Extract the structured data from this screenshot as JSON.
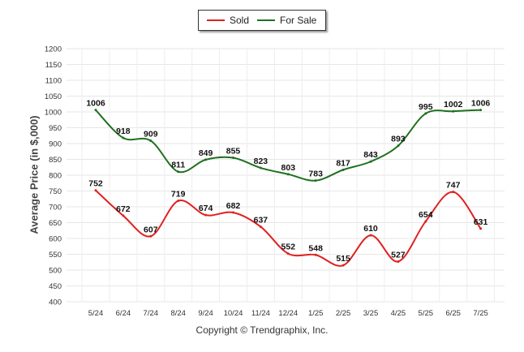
{
  "chart_data": {
    "type": "line",
    "categories": [
      "5/24",
      "6/24",
      "7/24",
      "8/24",
      "9/24",
      "10/24",
      "11/24",
      "12/24",
      "1/25",
      "2/25",
      "3/25",
      "4/25",
      "5/25",
      "6/25",
      "7/25"
    ],
    "series": [
      {
        "name": "Sold",
        "color": "#e02020",
        "values": [
          752,
          672,
          607,
          719,
          674,
          682,
          637,
          552,
          548,
          515,
          610,
          527,
          654,
          747,
          631
        ]
      },
      {
        "name": "For Sale",
        "color": "#207020",
        "values": [
          1006,
          918,
          909,
          811,
          849,
          855,
          823,
          803,
          783,
          817,
          843,
          893,
          995,
          1002,
          1006
        ]
      }
    ],
    "ylabel": "Average Price (in $,000)",
    "ylim": [
      400,
      1200
    ],
    "yticks": [
      400,
      450,
      500,
      550,
      600,
      650,
      700,
      750,
      800,
      850,
      900,
      950,
      1000,
      1050,
      1100,
      1150,
      1200
    ],
    "grid": true,
    "legend_position": "top-center"
  },
  "footer": {
    "copyright": "Copyright © Trendgraphix, Inc."
  }
}
